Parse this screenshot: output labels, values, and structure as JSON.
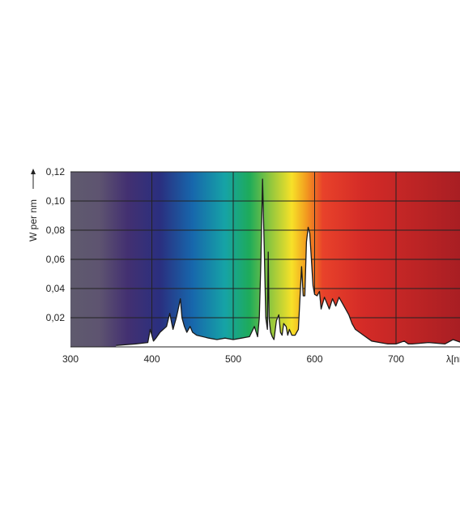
{
  "chart_data": {
    "type": "area",
    "title": "",
    "xlabel": "λ[nm]",
    "ylabel": "W per nm",
    "xlim": [
      300,
      780
    ],
    "ylim": [
      0,
      0.12
    ],
    "grid": true,
    "x_ticks": [
      "300",
      "400",
      "500",
      "600",
      "700"
    ],
    "y_ticks": [
      "0,02",
      "0,04",
      "0,06",
      "0,08",
      "0,10",
      "0,12"
    ],
    "fill_color": "#ffffff",
    "line_color": "#1a1a1a",
    "spectrum_colors": [
      {
        "nm": 300,
        "color": "#5f5a6e"
      },
      {
        "nm": 335,
        "color": "#5e5470"
      },
      {
        "nm": 370,
        "color": "#433071"
      },
      {
        "nm": 410,
        "color": "#2a2f7f"
      },
      {
        "nm": 450,
        "color": "#1767ac"
      },
      {
        "nm": 490,
        "color": "#16a3a6"
      },
      {
        "nm": 520,
        "color": "#1eab5a"
      },
      {
        "nm": 545,
        "color": "#8dc63f"
      },
      {
        "nm": 572,
        "color": "#f7e128"
      },
      {
        "nm": 590,
        "color": "#f29a1f"
      },
      {
        "nm": 610,
        "color": "#e8422a"
      },
      {
        "nm": 660,
        "color": "#d42b27"
      },
      {
        "nm": 780,
        "color": "#a81e23"
      }
    ],
    "series": [
      {
        "x": [
          356,
          380,
          395,
          398,
          402,
          405,
          410,
          418,
          422,
          426,
          430,
          432,
          435,
          437,
          440,
          443,
          447,
          450,
          455,
          470,
          480,
          490,
          500,
          510,
          520,
          526,
          530,
          532,
          534,
          536,
          538,
          540,
          542,
          543,
          544,
          546,
          548,
          550,
          553,
          556,
          558,
          560,
          562,
          565,
          567,
          569,
          572,
          576,
          580,
          584,
          586,
          588,
          590,
          592,
          594,
          596,
          598,
          600,
          603,
          606,
          608,
          612,
          615,
          618,
          622,
          626,
          630,
          634,
          638,
          642,
          646,
          650,
          655,
          660,
          665,
          670,
          680,
          690,
          700,
          710,
          715,
          720,
          740,
          760,
          770,
          780
        ],
        "y": [
          0.001,
          0.002,
          0.003,
          0.012,
          0.004,
          0.006,
          0.01,
          0.014,
          0.023,
          0.012,
          0.02,
          0.025,
          0.033,
          0.02,
          0.014,
          0.01,
          0.014,
          0.01,
          0.008,
          0.006,
          0.005,
          0.006,
          0.005,
          0.006,
          0.007,
          0.014,
          0.007,
          0.02,
          0.06,
          0.115,
          0.07,
          0.02,
          0.012,
          0.065,
          0.02,
          0.01,
          0.007,
          0.005,
          0.018,
          0.022,
          0.01,
          0.008,
          0.016,
          0.014,
          0.008,
          0.012,
          0.008,
          0.008,
          0.012,
          0.055,
          0.035,
          0.035,
          0.072,
          0.082,
          0.078,
          0.06,
          0.042,
          0.036,
          0.035,
          0.038,
          0.026,
          0.034,
          0.03,
          0.026,
          0.033,
          0.028,
          0.034,
          0.03,
          0.026,
          0.022,
          0.016,
          0.012,
          0.01,
          0.008,
          0.006,
          0.004,
          0.003,
          0.002,
          0.002,
          0.004,
          0.002,
          0.002,
          0.003,
          0.002,
          0.005,
          0.003
        ]
      }
    ]
  }
}
